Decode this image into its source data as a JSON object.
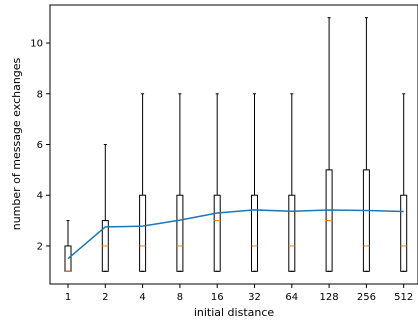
{
  "chart_data": {
    "type": "box",
    "xlabel": "initial distance",
    "ylabel": "number of message exchanges",
    "categories": [
      "1",
      "2",
      "4",
      "8",
      "16",
      "32",
      "64",
      "128",
      "256",
      "512"
    ],
    "ylim": [
      0.5,
      11.5
    ],
    "yticks": [
      2,
      4,
      6,
      8,
      10
    ],
    "boxes": [
      {
        "category": "1",
        "whisker_low": 1,
        "q1": 1,
        "median": 1,
        "q3": 2,
        "whisker_high": 3
      },
      {
        "category": "2",
        "whisker_low": 1,
        "q1": 1,
        "median": 2,
        "q3": 3,
        "whisker_high": 6
      },
      {
        "category": "4",
        "whisker_low": 1,
        "q1": 1,
        "median": 2,
        "q3": 4,
        "whisker_high": 8
      },
      {
        "category": "8",
        "whisker_low": 1,
        "q1": 1,
        "median": 2,
        "q3": 4,
        "whisker_high": 8
      },
      {
        "category": "16",
        "whisker_low": 1,
        "q1": 1,
        "median": 3,
        "q3": 4,
        "whisker_high": 8
      },
      {
        "category": "32",
        "whisker_low": 1,
        "q1": 1,
        "median": 2,
        "q3": 4,
        "whisker_high": 8
      },
      {
        "category": "64",
        "whisker_low": 1,
        "q1": 1,
        "median": 2,
        "q3": 4,
        "whisker_high": 8
      },
      {
        "category": "128",
        "whisker_low": 1,
        "q1": 1,
        "median": 3,
        "q3": 5,
        "whisker_high": 11
      },
      {
        "category": "256",
        "whisker_low": 1,
        "q1": 1,
        "median": 2,
        "q3": 5,
        "whisker_high": 11
      },
      {
        "category": "512",
        "whisker_low": 1,
        "q1": 1,
        "median": 2,
        "q3": 4,
        "whisker_high": 8
      }
    ],
    "mean_line": [
      1.5,
      2.75,
      2.78,
      3.02,
      3.3,
      3.42,
      3.37,
      3.42,
      3.4,
      3.36
    ],
    "colors": {
      "box": "#000000",
      "median": "#ff7f0e",
      "mean_line": "#1f77b4"
    },
    "grid": false,
    "legend": "none"
  }
}
